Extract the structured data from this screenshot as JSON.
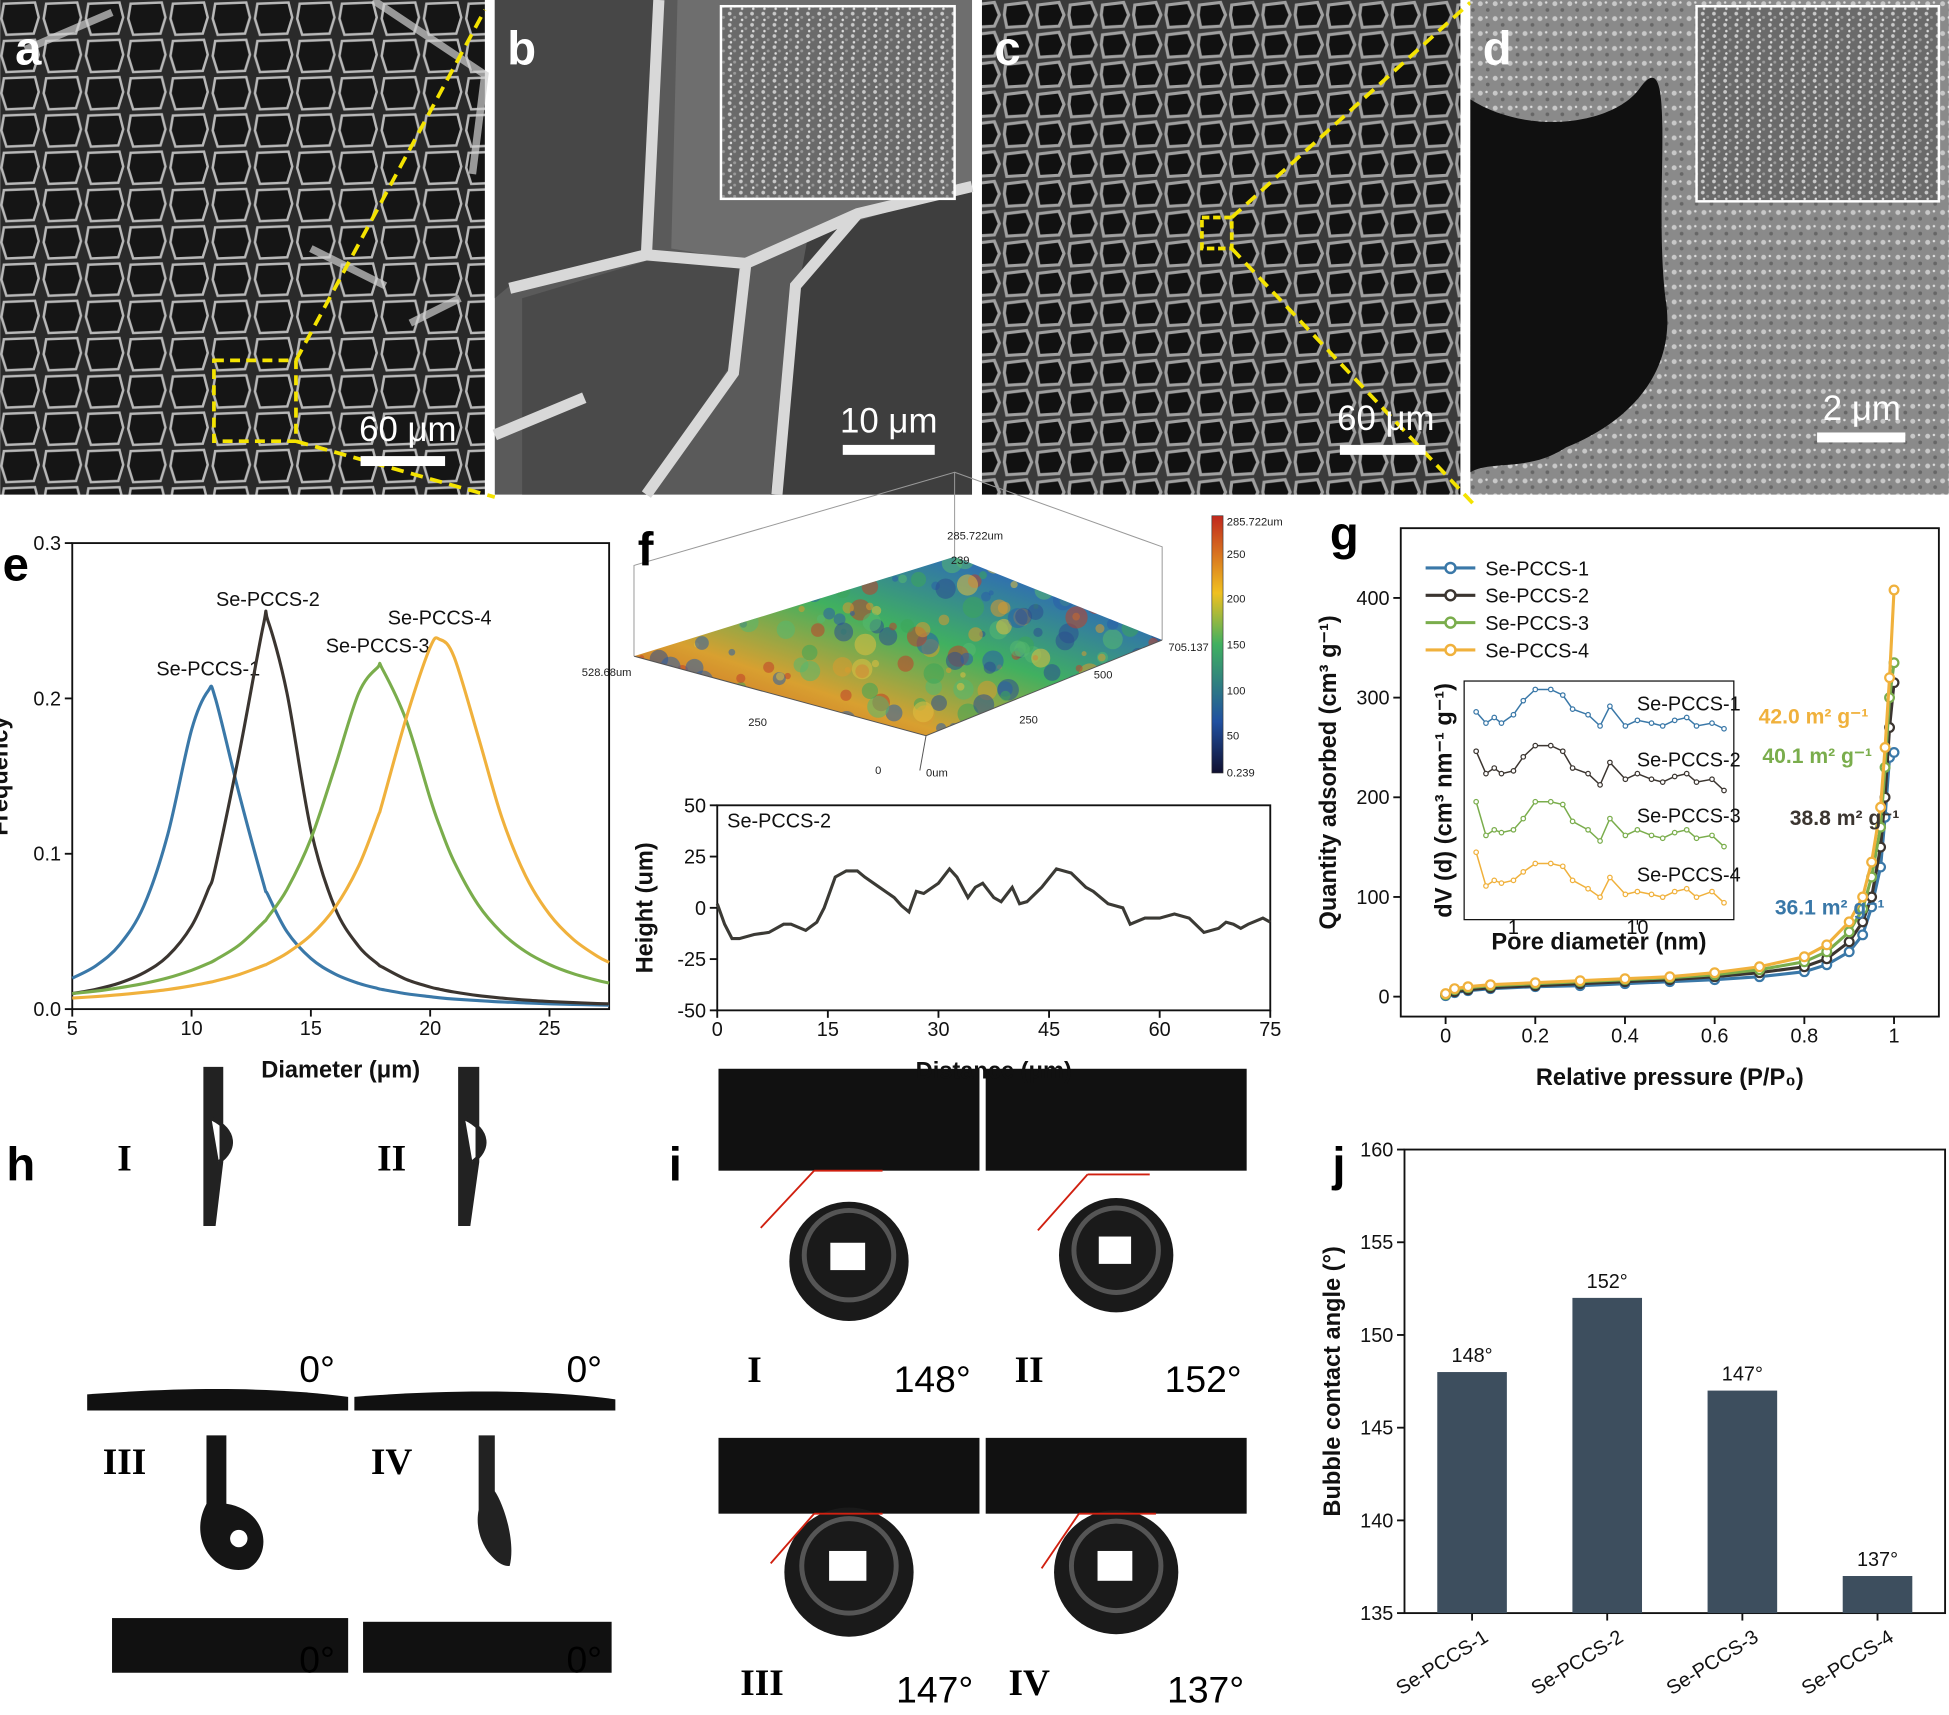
{
  "sem_images": [
    {
      "label": "a",
      "scale_bar": "60 μm"
    },
    {
      "label": "b",
      "scale_bar": "10 μm"
    },
    {
      "label": "c",
      "scale_bar": "60 μm"
    },
    {
      "label": "d",
      "scale_bar": "2 μm"
    }
  ],
  "topography": {
    "panel_label": "f",
    "top": "285.722um",
    "z_tick": "239",
    "x_end": "705.137",
    "y_end": "528.68um",
    "x_ticks": [
      "250",
      "500"
    ],
    "y_ticks": [
      "250",
      "0"
    ],
    "origin": "0um",
    "colorbar": [
      "285.722um",
      "250",
      "200",
      "150",
      "100",
      "50",
      "0.239"
    ]
  },
  "bubble_images_h": {
    "panel_label": "h",
    "items": [
      {
        "label": "I",
        "angle": "0°"
      },
      {
        "label": "II",
        "angle": "0°"
      },
      {
        "label": "III",
        "angle": "0°"
      },
      {
        "label": "IV",
        "angle": "0°"
      }
    ]
  },
  "bubble_images_i": {
    "panel_label": "i",
    "items": [
      {
        "label": "I",
        "angle": "148°"
      },
      {
        "label": "II",
        "angle": "152°"
      },
      {
        "label": "III",
        "angle": "147°"
      },
      {
        "label": "IV",
        "angle": "137°"
      }
    ]
  },
  "chart_data": [
    {
      "panel_label": "e",
      "type": "line",
      "xlabel": "Diameter (μm)",
      "ylabel": "Frequency",
      "legend": "peaks",
      "x": [
        5,
        6,
        7,
        8,
        9,
        10,
        10.7,
        11,
        12,
        13,
        13.2,
        14,
        15,
        16,
        17,
        17.8,
        18,
        19,
        20,
        20.4,
        21,
        22,
        23,
        24,
        25,
        26,
        27,
        27.5
      ],
      "series": [
        {
          "name": "Se-PCCS-1",
          "color": "#3a78a8",
          "values": [
            0.0199,
            0.028,
            0.0417,
            0.0665,
            0.1123,
            0.1798,
            0.205,
            0.1999,
            0.1382,
            0.0816,
            0.0736,
            0.0498,
            0.0326,
            0.0227,
            0.0166,
            0.0133,
            0.0126,
            0.0099,
            0.008,
            0.0073,
            0.0065,
            0.0055,
            0.0046,
            0.004,
            0.0034,
            0.003,
            0.0027,
            0.0025
          ]
        },
        {
          "name": "Se-PCCS-2",
          "color": "#3b3530",
          "values": [
            0.01,
            0.0128,
            0.0169,
            0.0234,
            0.0341,
            0.0535,
            0.0771,
            0.0914,
            0.1649,
            0.2465,
            0.25,
            0.2034,
            0.1156,
            0.0656,
            0.0405,
            0.0291,
            0.027,
            0.0191,
            0.0142,
            0.0128,
            0.011,
            0.0087,
            0.0071,
            0.0058,
            0.0049,
            0.0042,
            0.0036,
            0.0034
          ]
        },
        {
          "name": "Se-PCCS-3",
          "color": "#7aad4c",
          "values": [
            0.01,
            0.0116,
            0.0138,
            0.0165,
            0.0201,
            0.025,
            0.0294,
            0.0317,
            0.0413,
            0.0556,
            0.0592,
            0.0771,
            0.1096,
            0.1554,
            0.2033,
            0.22,
            0.2189,
            0.1857,
            0.1356,
            0.1178,
            0.095,
            0.0674,
            0.0492,
            0.037,
            0.0287,
            0.0228,
            0.0185,
            0.0168
          ]
        },
        {
          "name": "Se-PCCS-4",
          "color": "#f0b13c",
          "values": [
            0.0071,
            0.0081,
            0.0093,
            0.0108,
            0.0126,
            0.015,
            0.0171,
            0.0181,
            0.0223,
            0.028,
            0.0293,
            0.036,
            0.0476,
            0.0651,
            0.092,
            0.1235,
            0.133,
            0.1876,
            0.2329,
            0.238,
            0.2268,
            0.1762,
            0.1235,
            0.0857,
            0.061,
            0.0449,
            0.0341,
            0.0301
          ]
        }
      ],
      "xlim": [
        5,
        27.5
      ],
      "xticks": [
        5,
        10,
        15,
        20,
        25
      ],
      "ylim": [
        0,
        0.3
      ],
      "yticks": [
        {
          "value": 0,
          "label": "0.0"
        },
        0.1,
        0.2,
        0.3
      ]
    },
    {
      "type": "line",
      "xlabel": "Distance (μm)",
      "ylabel": "Height (um)",
      "legend": "top-left",
      "x": [
        0,
        1,
        2,
        3,
        5,
        7,
        9,
        10,
        12,
        13.5,
        14.5,
        16,
        17.5,
        19,
        20,
        22,
        24,
        25,
        26,
        27,
        28,
        30,
        31.5,
        32.5,
        34,
        35,
        36,
        37.5,
        38.5,
        40,
        41,
        42,
        44,
        46,
        48,
        50,
        51,
        53,
        55,
        56,
        58,
        60,
        62,
        64,
        66,
        68,
        69,
        70,
        71,
        72,
        74,
        75
      ],
      "series": [
        {
          "name": "Se-PCCS-2",
          "color": "#3b3a35",
          "values": [
            2,
            -8,
            -15,
            -15,
            -13,
            -12,
            -8,
            -8,
            -11,
            -7,
            0,
            15,
            18,
            18,
            15,
            10,
            5,
            1,
            -2,
            8,
            7,
            12,
            19,
            15,
            5,
            10,
            12,
            5,
            3,
            10,
            2,
            3,
            10,
            19,
            17,
            10,
            8,
            2,
            0,
            -8,
            -5,
            -5,
            -3,
            -5,
            -12,
            -10,
            -7,
            -8,
            -10,
            -8,
            -5,
            -7
          ]
        }
      ],
      "xlim": [
        0,
        75
      ],
      "xticks": [
        0,
        15,
        30,
        45,
        60,
        75
      ],
      "ylim": [
        -50,
        50
      ],
      "yticks": [
        -50,
        -25,
        0,
        25,
        50
      ]
    },
    {
      "panel_label": "g",
      "type": "line",
      "markers": true,
      "xlabel": "Relative pressure (P/P₀)",
      "ylabel": "Quantity adsorbed (cm³ g⁻¹)",
      "legend": "top-left",
      "x": [
        0,
        0.02,
        0.05,
        0.1,
        0.2,
        0.3,
        0.4,
        0.5,
        0.6,
        0.7,
        0.8,
        0.85,
        0.9,
        0.93,
        0.95,
        0.97,
        0.98,
        0.99,
        1.0
      ],
      "series": [
        {
          "name": "Se-PCCS-1",
          "color": "#3a78a8",
          "values": [
            1,
            4,
            6,
            8,
            10,
            11,
            13,
            15,
            17,
            20,
            25,
            32,
            45,
            62,
            90,
            130,
            180,
            240,
            245
          ]
        },
        {
          "name": "Se-PCCS-2",
          "color": "#3b3530",
          "values": [
            2,
            5,
            7,
            9,
            11,
            13,
            15,
            17,
            20,
            24,
            30,
            38,
            55,
            75,
            100,
            150,
            200,
            270,
            315
          ]
        },
        {
          "name": "Se-PCCS-3",
          "color": "#7aad4c",
          "values": [
            2,
            7,
            9,
            11,
            13,
            15,
            17,
            19,
            22,
            27,
            35,
            45,
            65,
            88,
            120,
            170,
            230,
            300,
            335
          ]
        },
        {
          "name": "Se-PCCS-4",
          "color": "#f0b13c",
          "values": [
            3,
            8,
            10,
            12,
            14,
            16,
            18,
            20,
            24,
            30,
            40,
            52,
            75,
            100,
            135,
            190,
            250,
            320,
            408
          ]
        }
      ],
      "annotations": [
        {
          "text": "42.0 m² g⁻¹",
          "color": "#f0b13c"
        },
        {
          "text": "40.1 m² g⁻¹",
          "color": "#7aad4c"
        },
        {
          "text": "38.8 m² g⁻¹",
          "color": "#3b3530"
        },
        {
          "text": "36.1 m² g⁻¹",
          "color": "#3a78a8"
        }
      ],
      "xlim": [
        -0.1,
        1.1
      ],
      "xticks": [
        0,
        0.2,
        0.4,
        0.6,
        0.8,
        1
      ],
      "ylim": [
        -20,
        470
      ],
      "yticks": [
        0,
        100,
        200,
        300,
        400
      ]
    },
    {
      "type": "line",
      "markers": true,
      "xscale": "log",
      "xlabel": "Pore diameter (nm)",
      "ylabel": "dV (d) (cm³ nm⁻¹ g⁻¹)",
      "legend": "right",
      "x": [
        0.5,
        0.6,
        0.7,
        0.8,
        1,
        1.2,
        1.5,
        2,
        2.5,
        3,
        4,
        5,
        6,
        8,
        10,
        13,
        16,
        20,
        25,
        30,
        40,
        50
      ],
      "series": [
        {
          "name": "Se-PCCS-1",
          "color": "#3a78a8",
          "values": [
            84,
            80,
            82,
            80,
            83,
            88,
            92,
            92,
            90,
            85,
            83,
            79,
            86,
            79,
            81,
            80,
            79,
            81,
            82,
            79,
            80,
            78
          ]
        },
        {
          "name": "Se-PCCS-2",
          "color": "#3b3530",
          "values": [
            70,
            62,
            64,
            62,
            63,
            68,
            72,
            72,
            70,
            64,
            62,
            58,
            66,
            60,
            62,
            60,
            59,
            61,
            62,
            59,
            60,
            56
          ]
        },
        {
          "name": "Se-PCCS-3",
          "color": "#7aad4c",
          "values": [
            52,
            40,
            42,
            41,
            42,
            46,
            52,
            52,
            51,
            45,
            42,
            38,
            46,
            40,
            42,
            40,
            39,
            41,
            42,
            39,
            40,
            36
          ]
        },
        {
          "name": "Se-PCCS-4",
          "color": "#f0b13c",
          "values": [
            34,
            22,
            24,
            23,
            24,
            27,
            30,
            30,
            29,
            24,
            21,
            18,
            25,
            19,
            20,
            19,
            18,
            20,
            21,
            18,
            20,
            16
          ]
        }
      ],
      "xlim": [
        0.4,
        60
      ],
      "xticks": [
        1,
        10
      ],
      "ylim": [
        10,
        95
      ]
    },
    {
      "panel_label": "j",
      "type": "bar",
      "ylabel": "Bubble contact angle (°)",
      "categories": [
        "Se-PCCS-1",
        "Se-PCCS-2",
        "Se-PCCS-3",
        "Se-PCCS-4"
      ],
      "values": [
        148,
        152,
        147,
        137
      ],
      "value_labels": [
        "148°",
        "152°",
        "147°",
        "137°"
      ],
      "color": "#3d4e5e",
      "ylim": [
        135,
        160
      ],
      "yticks": [
        135,
        140,
        145,
        150,
        155,
        160
      ]
    }
  ]
}
